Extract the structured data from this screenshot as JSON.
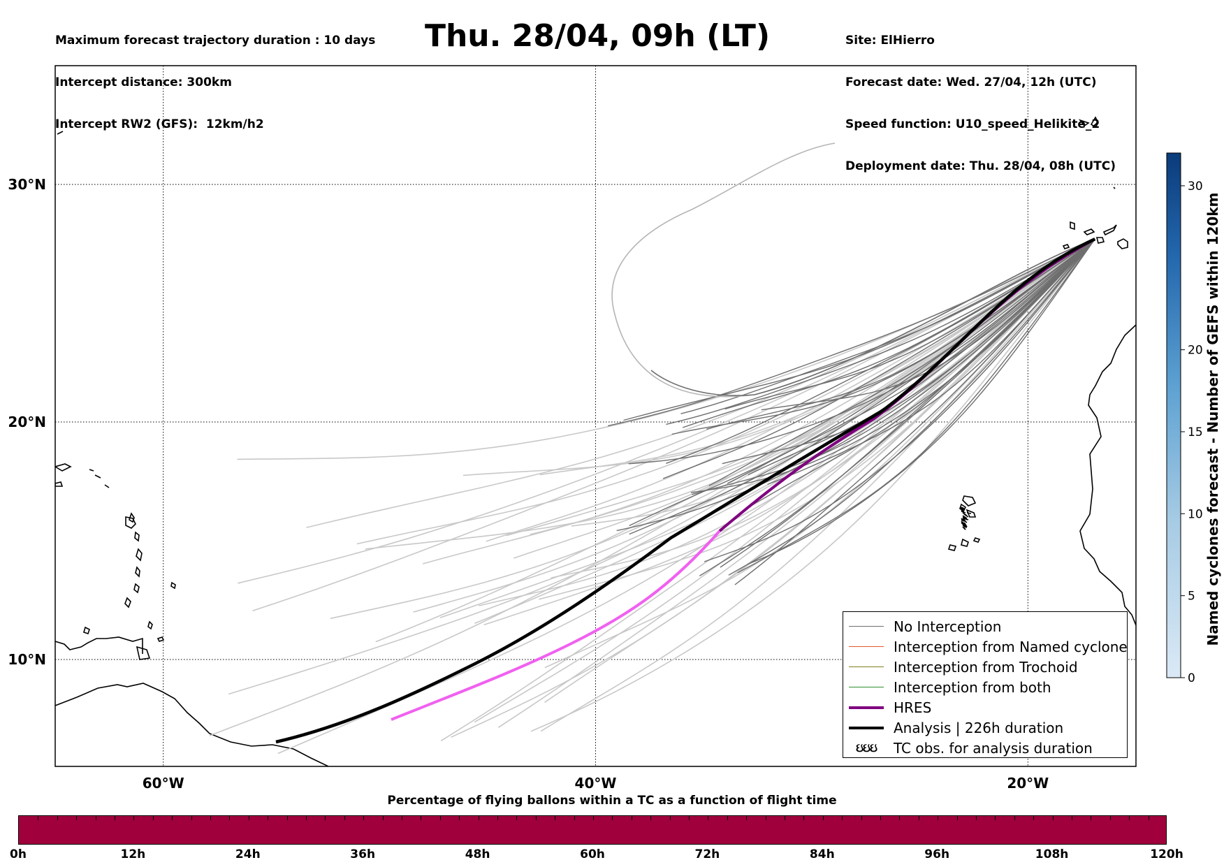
{
  "header": {
    "left": [
      "Maximum forecast trajectory duration : 10 days",
      "Intercept distance: 300km",
      "Intercept RW2 (GFS):  12km/h2"
    ],
    "title": "Thu. 28/04, 09h (LT)",
    "right": [
      "Site: ElHierro",
      "Forecast date: Wed. 27/04, 12h (UTC)",
      "Speed function: U10_speed_Helikite_2",
      "Deployment date: Thu. 28/04, 08h (UTC)"
    ]
  },
  "map": {
    "lon_range": [
      -65,
      -15
    ],
    "lat_range": [
      5.5,
      35
    ],
    "lon_ticks": [
      {
        "value": -60,
        "label": "60°W"
      },
      {
        "value": -40,
        "label": "40°W"
      },
      {
        "value": -20,
        "label": "20°W"
      }
    ],
    "lat_ticks": [
      {
        "value": 30,
        "label": "30°N"
      },
      {
        "value": 20,
        "label": "20°N"
      },
      {
        "value": 10,
        "label": "10°N"
      }
    ],
    "site": {
      "lon": -16.9,
      "lat": 27.7
    }
  },
  "legend": {
    "items": [
      {
        "label": "No Interception",
        "color": "#6e6e6e",
        "kind": "line"
      },
      {
        "label": "Interception from Named cyclone",
        "color": "#e8562a",
        "kind": "line"
      },
      {
        "label": "Interception from Trochoid",
        "color": "#7f7f1a",
        "kind": "line"
      },
      {
        "label": "Interception from both",
        "color": "#2f8f2f",
        "kind": "line"
      },
      {
        "label": "HRES",
        "color": "#800080",
        "kind": "thick"
      },
      {
        "label": "Analysis | 226h duration",
        "color": "#000000",
        "kind": "thick"
      },
      {
        "label": "TC obs. for analysis duration",
        "symbol": "ઇઇઇ",
        "kind": "symbol"
      }
    ]
  },
  "colorbar": {
    "label": "Named cyclones forecast - Number of GEFS within 120km",
    "ticks": [
      0,
      5,
      10,
      15,
      20,
      30
    ],
    "min": 0,
    "max": 32,
    "color_low": "#dbe9f6",
    "color_high": "#0b3b7a"
  },
  "percentage_bar": {
    "title": "Percentage of flying ballons within a TC as a function of flight time",
    "color": "#a0003c",
    "ticks": [
      "0h",
      "12h",
      "24h",
      "36h",
      "48h",
      "60h",
      "72h",
      "84h",
      "96h",
      "108h",
      "120h"
    ]
  },
  "colors": {
    "ensemble_gray": "#6e6e6e",
    "ensemble_light": "#c8c8c8",
    "hres": "#800080",
    "hres_late": "#f060f0",
    "analysis": "#000000"
  }
}
